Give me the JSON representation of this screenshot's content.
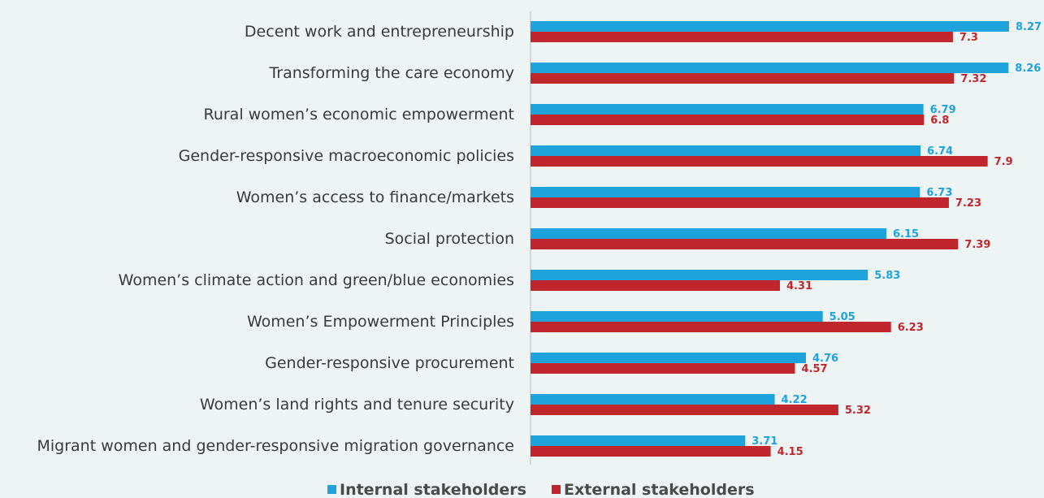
{
  "chart_data": {
    "type": "bar",
    "orientation": "horizontal",
    "categories": [
      "Decent work and entrepreneurship",
      "Transforming the care economy",
      "Rural women’s economic empowerment",
      "Gender-responsive macroeconomic policies",
      "Women’s access to finance/markets",
      "Social protection",
      "Women’s climate action and green/blue economies",
      "Women’s Empowerment Principles",
      "Gender-responsive procurement",
      "Women’s land rights and tenure security",
      "Migrant women and gender-responsive migration governance"
    ],
    "series": [
      {
        "name": "Internal stakeholders",
        "color": "#1ea3dc",
        "values": [
          8.27,
          8.26,
          6.79,
          6.74,
          6.73,
          6.15,
          5.83,
          5.05,
          4.76,
          4.22,
          3.71
        ],
        "labels": [
          "8.27",
          "8.26",
          "6.79",
          "6.74",
          "6.73",
          "6.15",
          "5.83",
          "5.05",
          "4.76",
          "4.22",
          "3.71"
        ]
      },
      {
        "name": "External stakeholders",
        "color": "#c0272d",
        "values": [
          7.3,
          7.32,
          6.8,
          7.9,
          7.23,
          7.39,
          4.31,
          6.23,
          4.57,
          5.32,
          4.15
        ],
        "labels": [
          "7.3",
          "7.32",
          "6.8",
          "7.9",
          "7.23",
          "7.39",
          "4.31",
          "6.23",
          "4.57",
          "5.32",
          "4.15"
        ]
      }
    ],
    "xlim": [
      0,
      9
    ],
    "grid": false,
    "legend_position": "bottom-center"
  }
}
